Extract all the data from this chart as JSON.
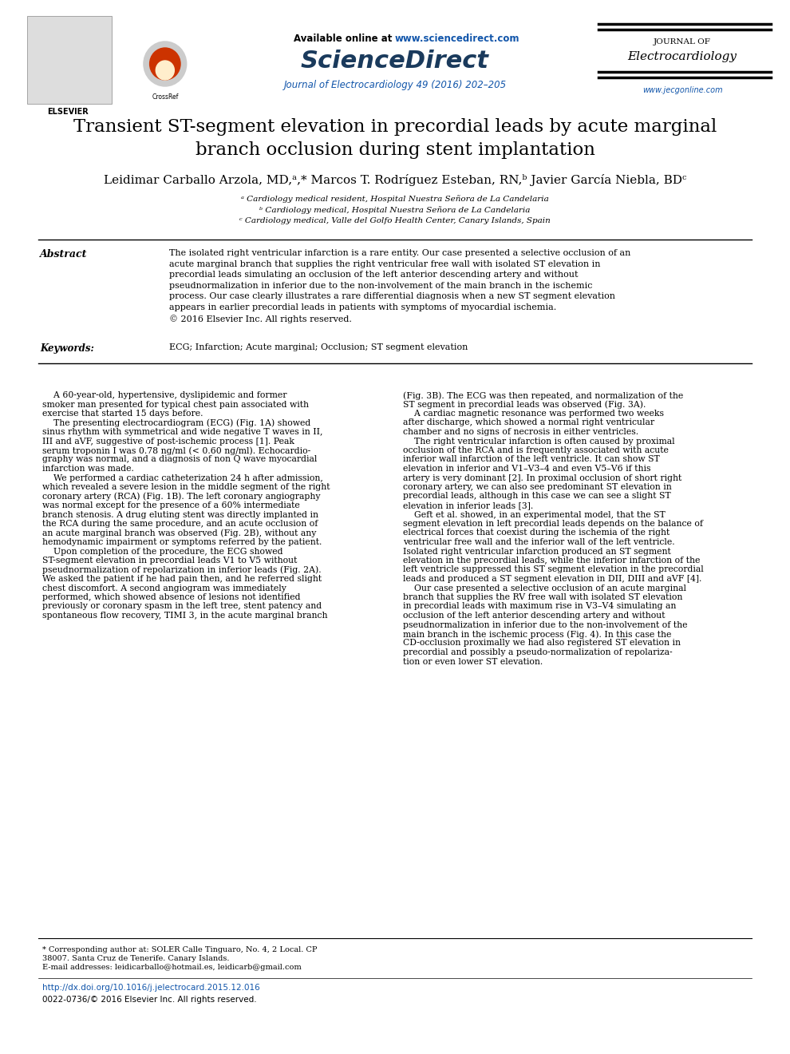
{
  "background_color": "#ffffff",
  "header": {
    "available_online_text": "Available online at ",
    "available_online_url": "www.sciencedirect.com",
    "sciencedirect_text": "ScienceDirect",
    "journal_info": "Journal of Electrocardiology 49 (2016) 202–205",
    "journal_name_line1": "JOURNAL OF",
    "journal_name_line2": "Electrocardiology",
    "journal_url": "www.jecgonline.com"
  },
  "title": "Transient ST-segment elevation in precordial leads by acute marginal\nbranch occlusion during stent implantation",
  "authors": "Leidimar Carballo Arzola, MD,ᵃ,* Marcos T. Rodríguez Esteban, RN,ᵇ Javier García Niebla, BDᶜ",
  "affiliations": [
    "ᵃ Cardiology medical resident, Hospital Nuestra Señora de La Candelaria",
    "ᵇ Cardiology medical, Hospital Nuestra Señora de La Candelaria",
    "ᶜ Cardiology medical, Valle del Golfo Health Center, Canary Islands, Spain"
  ],
  "abstract_label": "Abstract",
  "abstract_text": "The isolated right ventricular infarction is a rare entity. Our case presented a selective occlusion of an\nacute marginal branch that supplies the right ventricular free wall with isolated ST elevation in\nprecordial leads simulating an occlusion of the left anterior descending artery and without\npseudnormalization in inferior due to the non-involvement of the main branch in the ischemic\nprocess. Our case clearly illustrates a rare differential diagnosis when a new ST segment elevation\nappears in earlier precordial leads in patients with symptoms of myocardial ischemia.\n© 2016 Elsevier Inc. All rights reserved.",
  "keywords_label": "Keywords:",
  "keywords_text": "ECG; Infarction; Acute marginal; Occlusion; ST segment elevation",
  "body_left": "    A 60-year-old, hypertensive, dyslipidemic and former\nsmoker man presented for typical chest pain associated with\nexercise that started 15 days before.\n    The presenting electrocardiogram (ECG) (Fig. 1A) showed\nsinus rhythm with symmetrical and wide negative T waves in II,\nIII and aVF, suggestive of post-ischemic process [1]. Peak\nserum troponin I was 0.78 ng/ml (< 0.60 ng/ml). Echocardio-\ngraphy was normal, and a diagnosis of non Q wave myocardial\ninfarction was made.\n    We performed a cardiac catheterization 24 h after admission,\nwhich revealed a severe lesion in the middle segment of the right\ncoronary artery (RCA) (Fig. 1B). The left coronary angiography\nwas normal except for the presence of a 60% intermediate\nbranch stenosis. A drug eluting stent was directly implanted in\nthe RCA during the same procedure, and an acute occlusion of\nan acute marginal branch was observed (Fig. 2B), without any\nhemodynamic impairment or symptoms referred by the patient.\n    Upon completion of the procedure, the ECG showed\nST-segment elevation in precordial leads V1 to V5 without\npseudnormalization of repolarization in inferior leads (Fig. 2A).\nWe asked the patient if he had pain then, and he referred slight\nchest discomfort. A second angiogram was immediately\nperformed, which showed absence of lesions not identified\npreviously or coronary spasm in the left tree, stent patency and\nspontaneous flow recovery, TIMI 3, in the acute marginal branch",
  "body_right": "(Fig. 3B). The ECG was then repeated, and normalization of the\nST segment in precordial leads was observed (Fig. 3A).\n    A cardiac magnetic resonance was performed two weeks\nafter discharge, which showed a normal right ventricular\nchamber and no signs of necrosis in either ventricles.\n    The right ventricular infarction is often caused by proximal\nocclusion of the RCA and is frequently associated with acute\ninferior wall infarction of the left ventricle. It can show ST\nelevation in inferior and V1–V3–4 and even V5–V6 if this\nartery is very dominant [2]. In proximal occlusion of short right\ncoronary artery, we can also see predominant ST elevation in\nprecordial leads, although in this case we can see a slight ST\nelevation in inferior leads [3].\n    Geft et al. showed, in an experimental model, that the ST\nsegment elevation in left precordial leads depends on the balance of\nelectrical forces that coexist during the ischemia of the right\nventricular free wall and the inferior wall of the left ventricle.\nIsolated right ventricular infarction produced an ST segment\nelevation in the precordial leads, while the inferior infarction of the\nleft ventricle suppressed this ST segment elevation in the precordial\nleads and produced a ST segment elevation in DII, DIII and aVF [4].\n    Our case presented a selective occlusion of an acute marginal\nbranch that supplies the RV free wall with isolated ST elevation\nin precordial leads with maximum rise in V3–V4 simulating an\nocclusion of the left anterior descending artery and without\npseudnormalization in inferior due to the non-involvement of the\nmain branch in the ischemic process (Fig. 4). In this case the\nCD-occlusion proximally we had also registered ST elevation in\nprecordial and possibly a pseudo-normalization of repolariza-\ntion or even lower ST elevation.",
  "footer_left": "* Corresponding author at: SOLER Calle Tinguaro, No. 4, 2 Local. CP\n38007. Santa Cruz de Tenerife. Canary Islands.\nE-mail addresses: leidicarballo@hotmail.es, leidicarb@gmail.com",
  "footer_doi": "http://dx.doi.org/10.1016/j.jelectrocard.2015.12.016",
  "footer_issn": "0022-0736/© 2016 Elsevier Inc. All rights reserved.",
  "colors": {
    "blue_link": "#1155aa",
    "black_text": "#000000",
    "title_color": "#000000",
    "line_color": "#000000",
    "sciencedirect_blue": "#1a5276",
    "journal_link_blue": "#2980b9"
  }
}
